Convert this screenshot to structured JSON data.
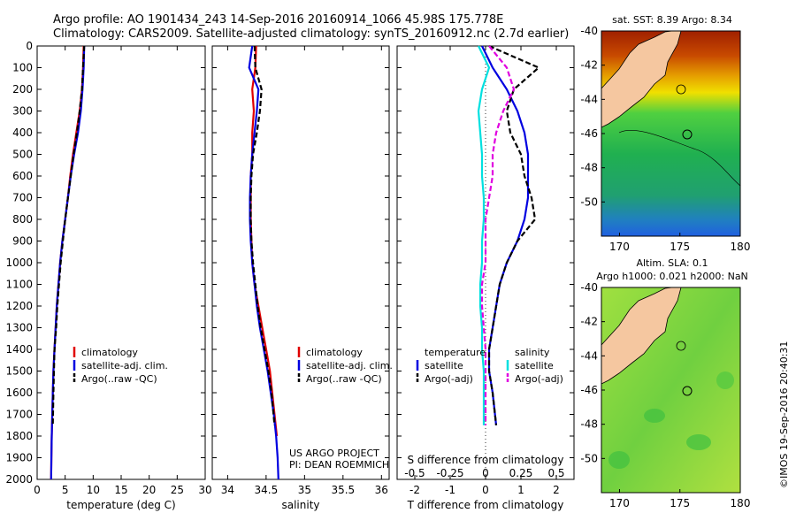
{
  "header": {
    "line1": "Argo profile: AO 1901434_243 14-Sep-2016 20160914_1066 45.98S 175.778E",
    "line2": "Climatology: CARS2009. Satellite-adjusted climatology: synTS_20160912.nc (2.7d earlier)"
  },
  "chart_data": [
    {
      "type": "line",
      "name": "temperature-profile",
      "xlabel": "temperature (deg C)",
      "xlim": [
        0,
        30
      ],
      "ylim": [
        2000,
        0
      ],
      "xticks": [
        "0",
        "5",
        "10",
        "15",
        "20",
        "25",
        "30"
      ],
      "yticks": [
        "0",
        "100",
        "200",
        "300",
        "400",
        "500",
        "600",
        "700",
        "800",
        "900",
        "1000",
        "1100",
        "1200",
        "1300",
        "1400",
        "1500",
        "1600",
        "1700",
        "1800",
        "1900",
        "2000"
      ],
      "legend": [
        "climatology",
        "satellite-adj. clim.",
        "Argo(..raw -QC)"
      ],
      "legend_position": "lower-right",
      "series": [
        {
          "name": "climatology",
          "color": "#e00000",
          "style": "solid",
          "x": [
            8.3,
            8.2,
            8.0,
            7.6,
            7.0,
            6.4,
            5.9,
            5.5,
            5.0,
            4.5,
            4.1,
            3.8,
            3.5,
            3.3,
            3.1,
            2.9,
            2.8,
            2.7,
            2.6,
            2.55,
            2.5
          ],
          "y": [
            0,
            100,
            200,
            300,
            400,
            500,
            600,
            700,
            800,
            900,
            1000,
            1100,
            1200,
            1300,
            1400,
            1500,
            1600,
            1700,
            1800,
            1900,
            2000
          ]
        },
        {
          "name": "satellite-adj. clim.",
          "color": "#0000e0",
          "style": "solid",
          "x": [
            8.4,
            8.3,
            8.1,
            7.8,
            7.3,
            6.6,
            6.0,
            5.5,
            5.0,
            4.5,
            4.1,
            3.8,
            3.5,
            3.3,
            3.1,
            2.9,
            2.8,
            2.7,
            2.6,
            2.55,
            2.5
          ],
          "y": [
            0,
            100,
            200,
            300,
            400,
            500,
            600,
            700,
            800,
            900,
            1000,
            1100,
            1200,
            1300,
            1400,
            1500,
            1600,
            1700,
            1800,
            1900,
            2000
          ]
        },
        {
          "name": "Argo(..raw -QC)",
          "color": "#000000",
          "style": "dashed",
          "x": [
            8.4,
            8.2,
            8.0,
            7.6,
            7.1,
            6.5,
            6.0,
            5.5,
            5.0,
            4.6,
            4.2,
            3.9,
            3.6,
            3.4,
            3.1,
            3.0,
            2.9,
            2.8
          ],
          "y": [
            0,
            100,
            200,
            300,
            400,
            500,
            600,
            700,
            800,
            900,
            1000,
            1100,
            1200,
            1300,
            1400,
            1500,
            1600,
            1750
          ]
        }
      ]
    },
    {
      "type": "line",
      "name": "salinity-profile",
      "xlabel": "salinity",
      "xlim": [
        33.8,
        36.1
      ],
      "ylim": [
        2000,
        0
      ],
      "xticks": [
        "34",
        "34.5",
        "35",
        "35.5",
        "36"
      ],
      "legend": [
        "climatology",
        "satellite-adj. clim.",
        "Argo(..raw -QC)"
      ],
      "legend_position": "lower-right",
      "series": [
        {
          "name": "climatology",
          "color": "#e00000",
          "style": "solid",
          "x": [
            34.37,
            34.36,
            34.32,
            34.34,
            34.32,
            34.32,
            34.3,
            34.3,
            34.3,
            34.31,
            34.32,
            34.35,
            34.4,
            34.45,
            34.5,
            34.55,
            34.58,
            34.61,
            34.64
          ],
          "y": [
            0,
            100,
            200,
            300,
            400,
            500,
            600,
            700,
            800,
            900,
            1000,
            1100,
            1200,
            1300,
            1400,
            1500,
            1600,
            1700,
            1800
          ]
        },
        {
          "name": "satellite-adj. clim.",
          "color": "#0000e0",
          "style": "solid",
          "x": [
            34.32,
            34.28,
            34.4,
            34.38,
            34.35,
            34.32,
            34.3,
            34.29,
            34.29,
            34.3,
            34.32,
            34.35,
            34.38,
            34.42,
            34.47,
            34.52,
            34.56,
            34.6,
            34.63,
            34.65,
            34.66
          ],
          "y": [
            0,
            100,
            200,
            300,
            400,
            500,
            600,
            700,
            800,
            900,
            1000,
            1100,
            1200,
            1300,
            1400,
            1500,
            1600,
            1700,
            1800,
            1900,
            2000
          ]
        },
        {
          "name": "Argo(..raw -QC)",
          "color": "#000000",
          "style": "dashed",
          "x": [
            34.35,
            34.36,
            34.44,
            34.42,
            34.38,
            34.33,
            34.31,
            34.3,
            34.3,
            34.31,
            34.33,
            34.36,
            34.39,
            34.43,
            34.48,
            34.53,
            34.57,
            34.61
          ],
          "y": [
            0,
            100,
            200,
            300,
            400,
            500,
            600,
            700,
            800,
            900,
            1000,
            1100,
            1200,
            1300,
            1400,
            1500,
            1600,
            1750
          ]
        }
      ],
      "annotations": [
        "US ARGO PROJECT",
        "PI: DEAN ROEMMICH"
      ]
    },
    {
      "type": "line",
      "name": "difference-profile",
      "xlabel": "T difference from climatology",
      "x2label": "S difference from climatology",
      "xlim": [
        -2.5,
        2.5
      ],
      "ylim": [
        2000,
        0
      ],
      "xticks": [
        "-2",
        "-1",
        "0",
        "1",
        "2"
      ],
      "x2ticks": [
        "-0.5",
        "-0.25",
        "0",
        "0.25",
        "0.5"
      ],
      "legend_temperature_header": "temperature",
      "legend_salinity_header": "salinity",
      "legend": [
        "satellite",
        "Argo(-adj)",
        "satellite",
        "Argo(-adj)"
      ],
      "legend_position": "lower-center",
      "series": [
        {
          "name": "satellite",
          "group": "temperature",
          "color": "#0000e0",
          "style": "solid",
          "x": [
            -0.1,
            0.2,
            0.6,
            0.9,
            1.1,
            1.2,
            1.2,
            1.2,
            1.1,
            0.9,
            0.6,
            0.4,
            0.3,
            0.2,
            0.1,
            0.1,
            0.2,
            0.3
          ],
          "y": [
            0,
            100,
            200,
            300,
            400,
            500,
            600,
            700,
            800,
            900,
            1000,
            1100,
            1200,
            1300,
            1400,
            1500,
            1600,
            1750
          ]
        },
        {
          "name": "Argo(-adj)",
          "group": "temperature",
          "color": "#000000",
          "style": "dashed",
          "x": [
            0.1,
            1.5,
            0.8,
            0.6,
            0.7,
            1.0,
            1.1,
            1.3,
            1.4,
            0.9,
            0.6,
            0.4,
            0.3,
            0.2,
            0.1,
            0.1,
            0.2,
            0.3
          ],
          "y": [
            0,
            100,
            200,
            300,
            400,
            500,
            600,
            700,
            800,
            900,
            1000,
            1100,
            1200,
            1300,
            1400,
            1500,
            1600,
            1750
          ]
        },
        {
          "name": "satellite",
          "group": "salinity",
          "color": "#00e0e0",
          "style": "solid",
          "x": [
            -0.2,
            0.1,
            -0.1,
            -0.2,
            -0.15,
            -0.1,
            -0.1,
            -0.05,
            -0.05,
            -0.1,
            -0.1,
            -0.15,
            -0.15,
            -0.1,
            -0.1,
            -0.05,
            -0.05
          ],
          "y": [
            0,
            100,
            200,
            300,
            400,
            500,
            600,
            700,
            800,
            900,
            1000,
            1100,
            1200,
            1300,
            1400,
            1500,
            1750
          ]
        },
        {
          "name": "Argo(-adj)",
          "group": "salinity",
          "color": "#e000e0",
          "style": "dashed",
          "x": [
            0.1,
            0.6,
            0.8,
            0.5,
            0.3,
            0.2,
            0.2,
            0.1,
            0.0,
            0.0,
            0.0,
            -0.1,
            -0.1,
            -0.05,
            0.0,
            0.0,
            0.0
          ],
          "y": [
            0,
            100,
            200,
            300,
            400,
            500,
            600,
            700,
            800,
            900,
            1000,
            1100,
            1200,
            1300,
            1400,
            1500,
            1750
          ]
        }
      ]
    },
    {
      "type": "heatmap",
      "name": "sst-map",
      "title": "sat. SST: 8.39 Argo: 8.34",
      "xlim": [
        168.5,
        180
      ],
      "ylim": [
        -52,
        -40
      ],
      "xticks": [
        "170",
        "175",
        "180"
      ],
      "yticks": [
        "-40",
        "-42",
        "-44",
        "-46",
        "-48",
        "-50"
      ],
      "marker": {
        "lon": 175.778,
        "lat": -45.98
      }
    },
    {
      "type": "heatmap",
      "name": "sla-map",
      "title1": "Altim. SLA: 0.1",
      "title2": "Argo h1000: 0.021 h2000: NaN",
      "xlim": [
        168.5,
        180
      ],
      "ylim": [
        -52,
        -40
      ],
      "xticks": [
        "170",
        "175",
        "180"
      ],
      "yticks": [
        "-40",
        "-42",
        "-44",
        "-46",
        "-48",
        "-50"
      ],
      "marker": {
        "lon": 175.778,
        "lat": -45.98
      }
    }
  ],
  "footer": {
    "credit": "©IMOS 19-Sep-2016 20:40:31"
  }
}
